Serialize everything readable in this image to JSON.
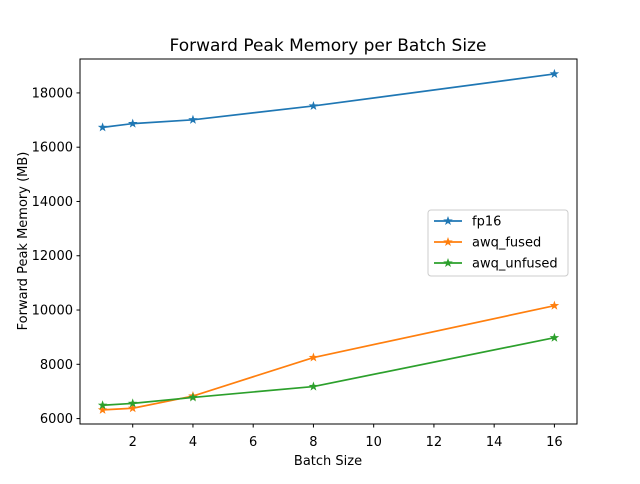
{
  "chart_data": {
    "type": "line",
    "title": "Forward Peak Memory per Batch Size",
    "xlabel": "Batch Size",
    "ylabel": "Forward Peak Memory (MB)",
    "x": [
      1,
      2,
      4,
      8,
      16
    ],
    "series": [
      {
        "name": "fp16",
        "color": "#1f77b4",
        "values": [
          16730,
          16870,
          17010,
          17520,
          18700
        ]
      },
      {
        "name": "awq_fused",
        "color": "#ff7f0e",
        "values": [
          6320,
          6380,
          6830,
          8250,
          10160
        ]
      },
      {
        "name": "awq_unfused",
        "color": "#2ca02c",
        "values": [
          6490,
          6560,
          6780,
          7180,
          8980
        ]
      }
    ],
    "marker": "star",
    "xticks": [
      2,
      4,
      6,
      8,
      10,
      12,
      14,
      16
    ],
    "yticks": [
      6000,
      8000,
      10000,
      12000,
      14000,
      16000,
      18000
    ],
    "xlim": [
      0.25,
      16.75
    ],
    "ylim": [
      5800,
      19250
    ],
    "grid": false,
    "legend_position": "center-right",
    "colors": {
      "spine": "#000000",
      "background": "#ffffff",
      "legend_border": "#cccccc"
    }
  }
}
